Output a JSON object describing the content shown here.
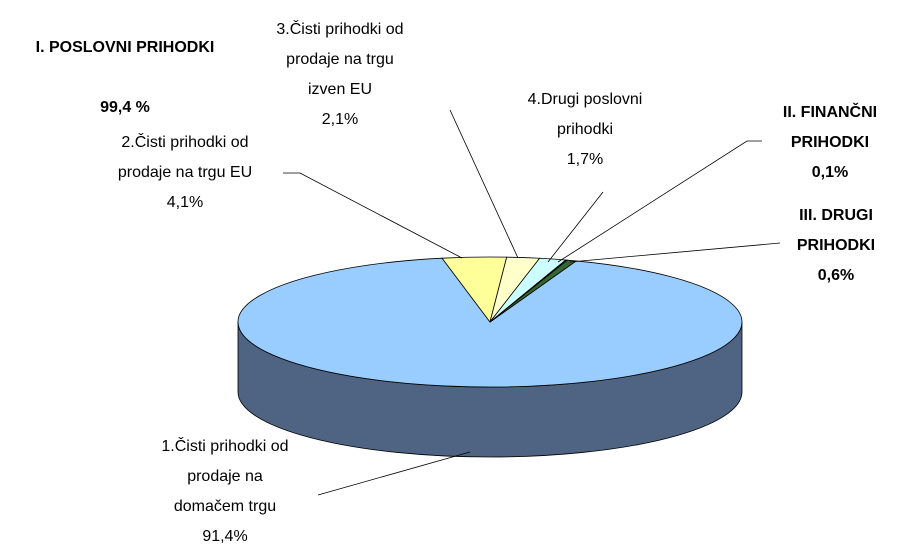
{
  "chart_data": {
    "type": "pie3d",
    "categories": [
      "1.Čisti prihodki od\nprodaje na\ndomačem trgu",
      "2.Čisti prihodki od\nprodaje na trgu EU",
      "3.Čisti prihodki od\nprodaje na trgu\nizven EU",
      "4.Drugi poslovni\nprihodki",
      "II. FINANČNI\nPRIHODKI",
      "III. DRUGI\nPRIHODKI"
    ],
    "values": [
      91.4,
      4.1,
      2.1,
      1.7,
      0.1,
      0.6
    ],
    "value_labels": [
      "91,4%",
      "4,1%",
      "2,1%",
      "1,7%",
      "0,1%",
      "0,6%"
    ],
    "colors": [
      "#99ccff",
      "#ffff99",
      "#ffffcc",
      "#ccffff",
      "#333366",
      "#336633"
    ],
    "bold_labels": [
      false,
      false,
      false,
      false,
      true,
      true
    ],
    "annotations": [
      {
        "text": "I. POSLOVNI PRIHODKI",
        "label": "99,4 %"
      }
    ]
  }
}
